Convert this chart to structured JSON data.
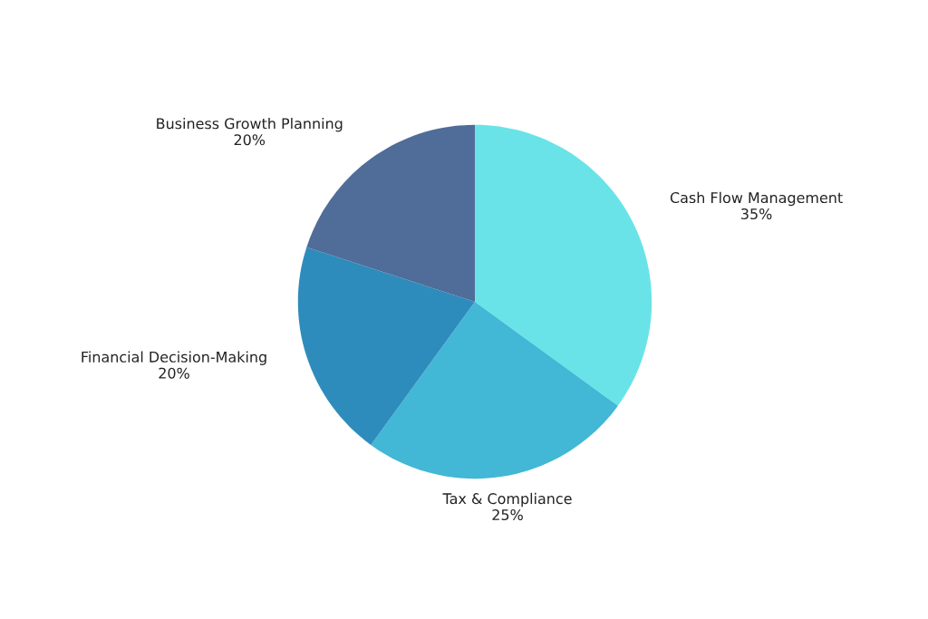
{
  "chart_data": {
    "type": "pie",
    "categories": [
      "Cash Flow Management",
      "Tax & Compliance",
      "Financial Decision-Making",
      "Business Growth Planning"
    ],
    "values": [
      35,
      25,
      20,
      20
    ],
    "colors": [
      "#69e3e8",
      "#42b7d6",
      "#2e8cbc",
      "#4f6d98"
    ],
    "value_labels": [
      "35%",
      "25%",
      "20%",
      "20%"
    ]
  }
}
